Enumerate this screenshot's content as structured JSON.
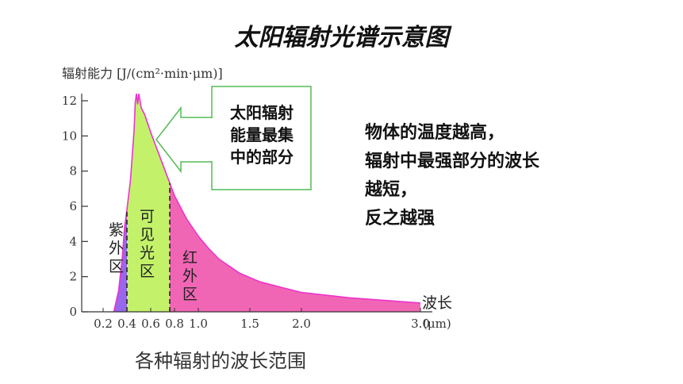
{
  "title": "太阳辐射光谱示意图",
  "caption": "各种辐射的波长范围",
  "note": {
    "lines": [
      "物体的温度越高，",
      "辐射中最强部分的波长",
      "越短，",
      "反之越强"
    ]
  },
  "colors": {
    "uv": "#9966ee",
    "visible": "#c3f26a",
    "infrared": "#f066b4",
    "curve": "#ee33cc",
    "arrow": "#55bb55"
  },
  "chart_data": {
    "type": "area",
    "title": "太阳辐射光谱示意图",
    "ylabel": "辐射能力 [J/(cm²·min·μm)]",
    "xlabel": "波长",
    "x_unit_label": "(μm)",
    "xlim": [
      0.2,
      3.0
    ],
    "ylim": [
      0,
      12
    ],
    "y_ticks": [
      0,
      2,
      4,
      6,
      8,
      10,
      12
    ],
    "x_ticks": [
      {
        "value": 0.2,
        "label": "0.2"
      },
      {
        "value": 0.4,
        "label": "0.4"
      },
      {
        "value": 0.6,
        "label": "0.6"
      },
      {
        "value": 0.8,
        "label": "0.8"
      },
      {
        "value": 1.0,
        "label": "1.0"
      },
      {
        "value": 1.5,
        "label": "1.5"
      },
      {
        "value": 2.0,
        "label": "2.0"
      },
      {
        "value": 3.0,
        "label": "3.0"
      }
    ],
    "series": [
      {
        "x": [
          0.29,
          0.33,
          0.36,
          0.38,
          0.4,
          0.43,
          0.46,
          0.47,
          0.48,
          0.49,
          0.5,
          0.52,
          0.55,
          0.6,
          0.65,
          0.7,
          0.75,
          0.8,
          0.9,
          1.0,
          1.1,
          1.2,
          1.4,
          1.6,
          1.8,
          2.0,
          2.4,
          2.8,
          3.0
        ],
        "y": [
          0.0,
          1.2,
          3.0,
          4.8,
          5.8,
          7.5,
          10.3,
          11.9,
          12.4,
          11.8,
          12.4,
          11.6,
          11.2,
          10.2,
          9.3,
          8.4,
          7.5,
          6.6,
          5.3,
          4.3,
          3.6,
          3.0,
          2.2,
          1.7,
          1.4,
          1.1,
          0.8,
          0.6,
          0.5
        ]
      }
    ],
    "boundaries": [
      0.4,
      0.76
    ],
    "regions": [
      {
        "name": "紫外区",
        "chars": [
          "紫",
          "外",
          "区"
        ],
        "x": 0.31
      },
      {
        "name": "可见光区",
        "chars": [
          "可",
          "见",
          "光",
          "区"
        ],
        "x": 0.57
      },
      {
        "name": "红外区",
        "chars": [
          "红",
          "外",
          "区"
        ],
        "x": 0.93
      }
    ],
    "annotation": {
      "lines": [
        "太阳辐射",
        "能量最集",
        "中的部分"
      ]
    }
  }
}
